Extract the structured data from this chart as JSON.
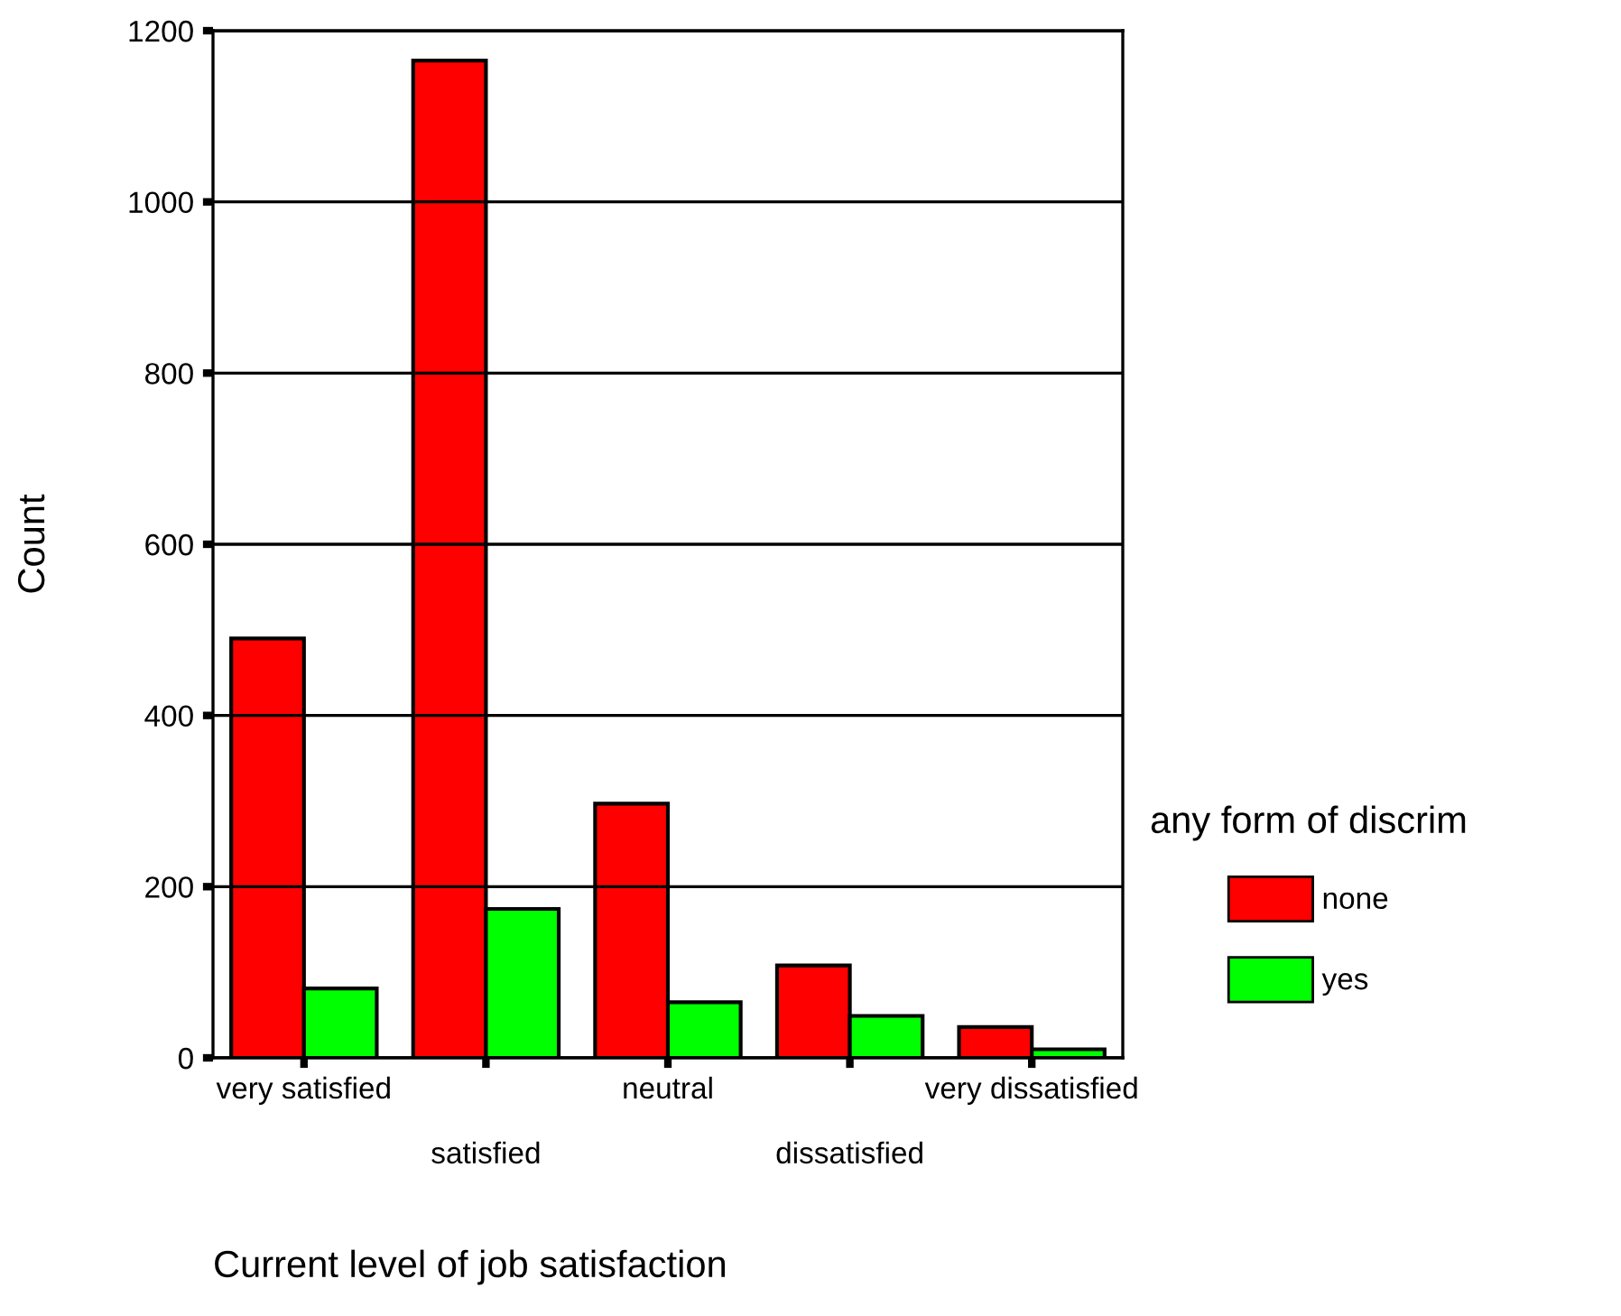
{
  "chart_data": {
    "type": "bar",
    "xlabel": "Current level of job satisfaction",
    "ylabel": "Count",
    "legend_title": "any form of discrim",
    "categories": [
      "very satisfied",
      "satisfied",
      "neutral",
      "dissatisfied",
      "very dissatisfied"
    ],
    "series": [
      {
        "name": "none",
        "color": "#ff0000",
        "values": [
          490,
          1165,
          297,
          108,
          36
        ]
      },
      {
        "name": "yes",
        "color": "#00ff00",
        "values": [
          81,
          174,
          65,
          49,
          10
        ]
      }
    ],
    "ylim": [
      0,
      1200
    ],
    "yticks": [
      0,
      200,
      400,
      600,
      800,
      1000,
      1200
    ],
    "grid": "y",
    "legend": "right"
  }
}
